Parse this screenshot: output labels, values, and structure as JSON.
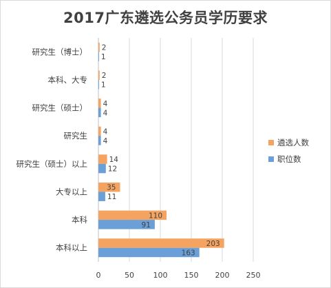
{
  "chart_data": {
    "type": "bar",
    "orientation": "horizontal",
    "title": "2017广东遴选公务员学历要求",
    "categories": [
      "研究生（博士）",
      "本科、大专",
      "研究生（硕士）",
      "研究生",
      "研究生（硕士）以上",
      "大专以上",
      "本科",
      "本科以上"
    ],
    "series": [
      {
        "name": "遴选人数",
        "color": "#f4a460",
        "values": [
          2,
          2,
          4,
          4,
          14,
          35,
          110,
          203
        ]
      },
      {
        "name": "职位数",
        "color": "#6a9fd8",
        "values": [
          1,
          1,
          4,
          4,
          12,
          11,
          91,
          163
        ]
      }
    ],
    "xlim": [
      0,
      250
    ],
    "xticks": [
      0,
      50,
      100,
      150,
      200,
      250
    ],
    "grid": "vertical",
    "legend_position": "right"
  }
}
